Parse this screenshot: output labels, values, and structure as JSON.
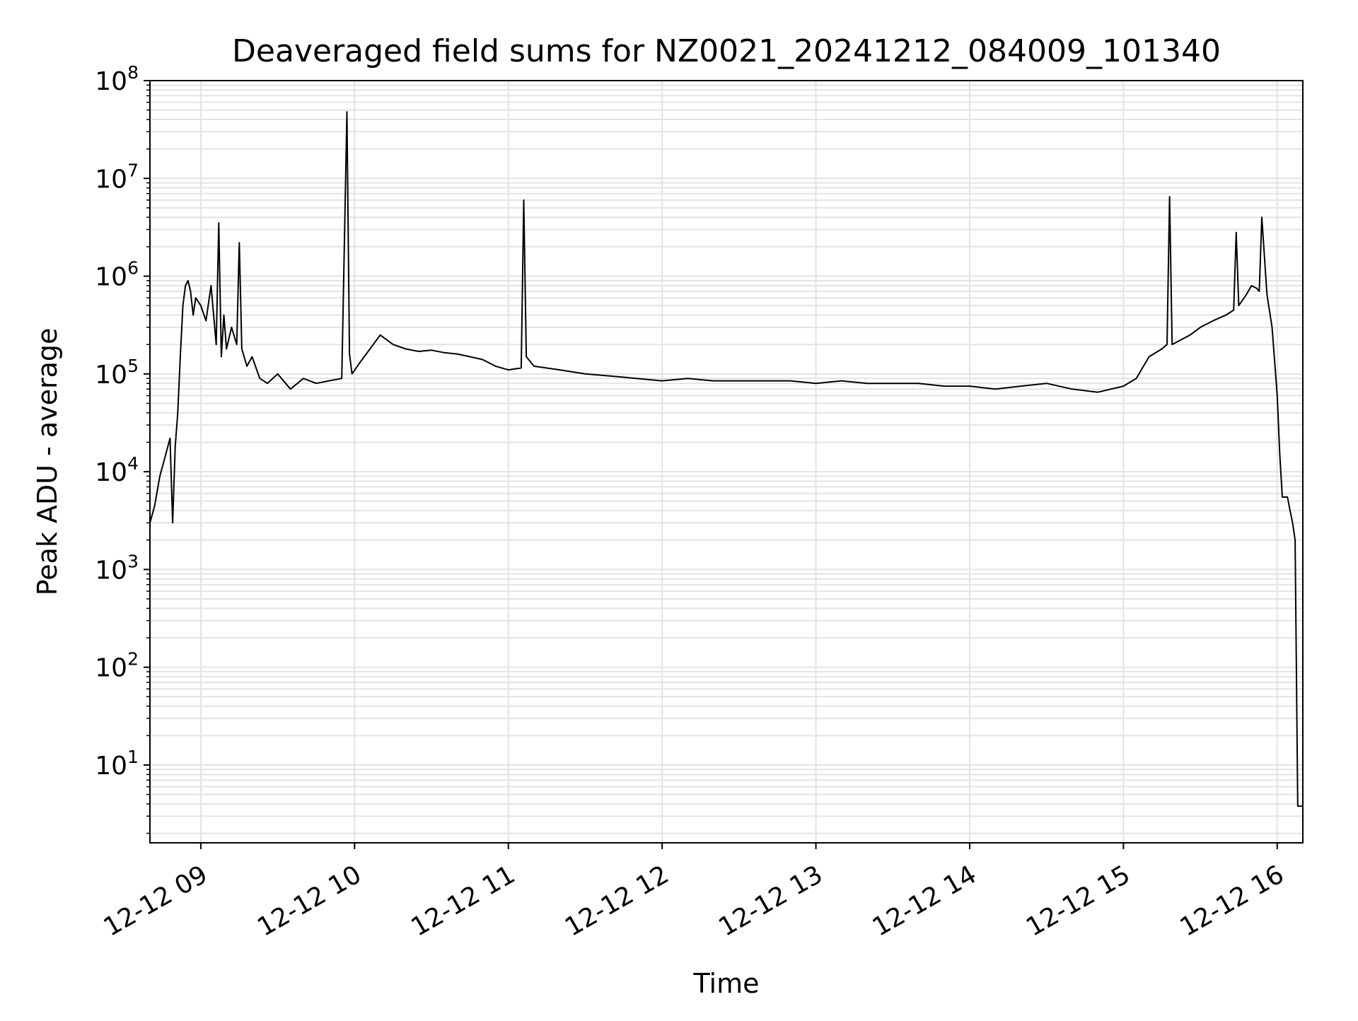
{
  "chart_data": {
    "type": "line",
    "title": "Deaveraged field sums for NZ0021_20241212_084009_101340",
    "xlabel": "Time",
    "ylabel": "Peak ADU - average",
    "x_is_time": true,
    "xlim": [
      "2024-12-12 08:40:09",
      "2024-12-12 16:10:00"
    ],
    "ylim": [
      1.6,
      100000000
    ],
    "yscale": "log",
    "grid": true,
    "line_color": "#000000",
    "grid_color": "#e3e3e3",
    "x_ticks": [
      {
        "value": "2024-12-12 09:00",
        "label": "12-12 09"
      },
      {
        "value": "2024-12-12 10:00",
        "label": "12-12 10"
      },
      {
        "value": "2024-12-12 11:00",
        "label": "12-12 11"
      },
      {
        "value": "2024-12-12 12:00",
        "label": "12-12 12"
      },
      {
        "value": "2024-12-12 13:00",
        "label": "12-12 13"
      },
      {
        "value": "2024-12-12 14:00",
        "label": "12-12 14"
      },
      {
        "value": "2024-12-12 15:00",
        "label": "12-12 15"
      },
      {
        "value": "2024-12-12 16:00",
        "label": "12-12 16"
      }
    ],
    "y_ticks": [
      {
        "value": 10,
        "base": "10",
        "exp": "1"
      },
      {
        "value": 100,
        "base": "10",
        "exp": "2"
      },
      {
        "value": 1000,
        "base": "10",
        "exp": "3"
      },
      {
        "value": 10000,
        "base": "10",
        "exp": "4"
      },
      {
        "value": 100000,
        "base": "10",
        "exp": "5"
      },
      {
        "value": 1000000,
        "base": "10",
        "exp": "6"
      },
      {
        "value": 10000000,
        "base": "10",
        "exp": "7"
      },
      {
        "value": 100000000,
        "base": "10",
        "exp": "8"
      }
    ],
    "series": [
      {
        "x": [
          "2024-12-12 08:40:09",
          "2024-12-12 08:42:00",
          "2024-12-12 08:44:00",
          "2024-12-12 08:46:00",
          "2024-12-12 08:48:00",
          "2024-12-12 08:49:00",
          "2024-12-12 08:50:00",
          "2024-12-12 08:51:00",
          "2024-12-12 08:52:00",
          "2024-12-12 08:53:00",
          "2024-12-12 08:54:00",
          "2024-12-12 08:55:00",
          "2024-12-12 08:56:00",
          "2024-12-12 08:57:00",
          "2024-12-12 08:58:00",
          "2024-12-12 09:00:00",
          "2024-12-12 09:02:00",
          "2024-12-12 09:04:00",
          "2024-12-12 09:06:00",
          "2024-12-12 09:07:00",
          "2024-12-12 09:08:00",
          "2024-12-12 09:09:00",
          "2024-12-12 09:10:00",
          "2024-12-12 09:12:00",
          "2024-12-12 09:14:00",
          "2024-12-12 09:15:00",
          "2024-12-12 09:16:00",
          "2024-12-12 09:18:00",
          "2024-12-12 09:20:00",
          "2024-12-12 09:23:00",
          "2024-12-12 09:26:00",
          "2024-12-12 09:30:00",
          "2024-12-12 09:35:00",
          "2024-12-12 09:40:00",
          "2024-12-12 09:45:00",
          "2024-12-12 09:50:00",
          "2024-12-12 09:55:00",
          "2024-12-12 09:57:00",
          "2024-12-12 09:58:00",
          "2024-12-12 09:59:00",
          "2024-12-12 10:02:00",
          "2024-12-12 10:06:00",
          "2024-12-12 10:10:00",
          "2024-12-12 10:15:00",
          "2024-12-12 10:20:00",
          "2024-12-12 10:25:00",
          "2024-12-12 10:30:00",
          "2024-12-12 10:35:00",
          "2024-12-12 10:40:00",
          "2024-12-12 10:45:00",
          "2024-12-12 10:50:00",
          "2024-12-12 10:55:00",
          "2024-12-12 11:00:00",
          "2024-12-12 11:05:00",
          "2024-12-12 11:06:00",
          "2024-12-12 11:07:00",
          "2024-12-12 11:10:00",
          "2024-12-12 11:20:00",
          "2024-12-12 11:30:00",
          "2024-12-12 11:40:00",
          "2024-12-12 11:50:00",
          "2024-12-12 12:00:00",
          "2024-12-12 12:10:00",
          "2024-12-12 12:20:00",
          "2024-12-12 12:30:00",
          "2024-12-12 12:40:00",
          "2024-12-12 12:50:00",
          "2024-12-12 13:00:00",
          "2024-12-12 13:10:00",
          "2024-12-12 13:20:00",
          "2024-12-12 13:30:00",
          "2024-12-12 13:40:00",
          "2024-12-12 13:50:00",
          "2024-12-12 14:00:00",
          "2024-12-12 14:10:00",
          "2024-12-12 14:20:00",
          "2024-12-12 14:30:00",
          "2024-12-12 14:40:00",
          "2024-12-12 14:50:00",
          "2024-12-12 15:00:00",
          "2024-12-12 15:05:00",
          "2024-12-12 15:10:00",
          "2024-12-12 15:15:00",
          "2024-12-12 15:17:00",
          "2024-12-12 15:18:00",
          "2024-12-12 15:19:00",
          "2024-12-12 15:22:00",
          "2024-12-12 15:26:00",
          "2024-12-12 15:30:00",
          "2024-12-12 15:35:00",
          "2024-12-12 15:40:00",
          "2024-12-12 15:43:00",
          "2024-12-12 15:44:00",
          "2024-12-12 15:45:00",
          "2024-12-12 15:48:00",
          "2024-12-12 15:50:00",
          "2024-12-12 15:52:00",
          "2024-12-12 15:53:00",
          "2024-12-12 15:54:00",
          "2024-12-12 15:56:00",
          "2024-12-12 15:58:00",
          "2024-12-12 16:00:00",
          "2024-12-12 16:01:00",
          "2024-12-12 16:02:00",
          "2024-12-12 16:04:00",
          "2024-12-12 16:05:00",
          "2024-12-12 16:06:00",
          "2024-12-12 16:07:00",
          "2024-12-12 16:08:00",
          "2024-12-12 16:10:00"
        ],
        "y": [
          3000,
          4500,
          9000,
          14000,
          22000,
          3000,
          18000,
          40000,
          150000,
          500000,
          800000,
          900000,
          700000,
          400000,
          600000,
          500000,
          350000,
          800000,
          200000,
          3500000,
          150000,
          400000,
          180000,
          300000,
          200000,
          2200000,
          180000,
          120000,
          150000,
          90000,
          80000,
          100000,
          70000,
          90000,
          80000,
          85000,
          90000,
          48000000,
          160000,
          100000,
          130000,
          180000,
          250000,
          200000,
          180000,
          170000,
          175000,
          165000,
          160000,
          150000,
          140000,
          120000,
          110000,
          115000,
          6000000,
          150000,
          120000,
          110000,
          100000,
          95000,
          90000,
          85000,
          90000,
          85000,
          85000,
          85000,
          85000,
          80000,
          85000,
          80000,
          80000,
          80000,
          75000,
          75000,
          70000,
          75000,
          80000,
          70000,
          65000,
          75000,
          90000,
          150000,
          180000,
          200000,
          6500000,
          200000,
          220000,
          250000,
          300000,
          350000,
          400000,
          450000,
          2800000,
          500000,
          650000,
          800000,
          750000,
          700000,
          4000000,
          650000,
          300000,
          60000,
          15000,
          5500,
          5500,
          4000,
          3000,
          2000,
          3.8,
          3.8
        ]
      }
    ]
  }
}
